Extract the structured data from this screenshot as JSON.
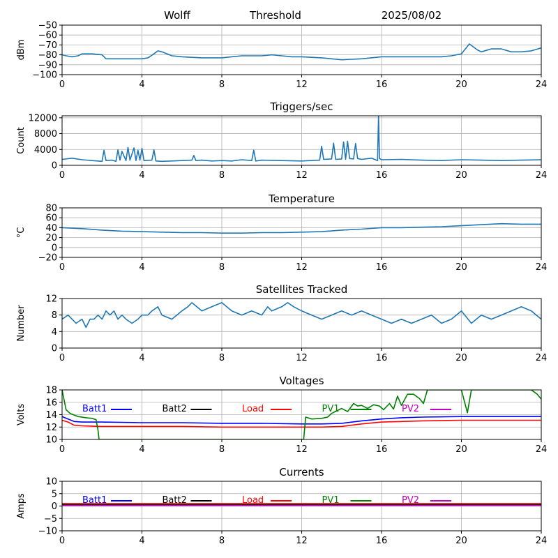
{
  "header": {
    "station": "Wolff",
    "mode": "Threshold",
    "date": "2025/08/02"
  },
  "chart_data": [
    {
      "type": "line",
      "title": "",
      "xlabel": "",
      "ylabel": "dBm",
      "xlim": [
        0,
        24
      ],
      "ylim": [
        -100,
        -50
      ],
      "xticks": [
        0,
        4,
        8,
        12,
        16,
        20,
        24
      ],
      "yticks": [
        -100,
        -90,
        -80,
        -70,
        -60,
        -50
      ],
      "grid": true,
      "series": [
        {
          "color": "#1f77b4",
          "x": [
            0,
            0.2,
            0.5,
            0.8,
            1.0,
            1.5,
            2.0,
            2.2,
            3.0,
            4.0,
            4.3,
            4.6,
            4.8,
            5.0,
            5.5,
            6.0,
            7.0,
            8.0,
            8.5,
            9.0,
            10.0,
            10.5,
            11.0,
            11.5,
            12.0,
            13.0,
            14.0,
            15.0,
            16.0,
            17.0,
            18.0,
            19.0,
            19.5,
            20.0,
            20.4,
            20.8,
            21.0,
            21.5,
            22.0,
            22.5,
            23.0,
            23.5,
            24.0
          ],
          "y": [
            -80,
            -81,
            -82,
            -81,
            -79,
            -79,
            -80,
            -84,
            -84,
            -84,
            -83,
            -79,
            -76,
            -77,
            -81,
            -82,
            -83,
            -83,
            -82,
            -81,
            -81,
            -80,
            -81,
            -82,
            -82,
            -83,
            -85,
            -84,
            -82,
            -82,
            -82,
            -82,
            -81,
            -79,
            -69,
            -75,
            -77,
            -74,
            -74,
            -77,
            -77,
            -76,
            -73
          ]
        }
      ]
    },
    {
      "type": "line",
      "title": "Triggers/sec",
      "xlabel": "",
      "ylabel": "Count",
      "xlim": [
        0,
        24
      ],
      "ylim": [
        0,
        12500
      ],
      "xticks": [
        0,
        4,
        8,
        12,
        16,
        20,
        24
      ],
      "yticks": [
        0,
        4000,
        8000,
        12000
      ],
      "grid": true,
      "series": [
        {
          "color": "#1f77b4",
          "x": [
            0,
            0.5,
            1.0,
            1.5,
            2.0,
            2.1,
            2.2,
            2.5,
            2.7,
            2.8,
            2.9,
            3.0,
            3.2,
            3.3,
            3.4,
            3.6,
            3.7,
            3.8,
            3.9,
            4.0,
            4.1,
            4.5,
            4.6,
            4.7,
            5.0,
            6.0,
            6.5,
            6.6,
            6.7,
            7.0,
            7.5,
            8.0,
            8.5,
            9.0,
            9.5,
            9.6,
            9.7,
            10.0,
            11.0,
            12.0,
            12.9,
            13.0,
            13.1,
            13.5,
            13.6,
            13.7,
            14.0,
            14.1,
            14.2,
            14.3,
            14.4,
            14.6,
            14.7,
            14.8,
            15.0,
            15.5,
            15.8,
            15.85,
            15.9,
            16.0,
            17.0,
            18.0,
            19.0,
            20.0,
            21.0,
            22.0,
            23.0,
            24.0
          ],
          "y": [
            1500,
            1800,
            1400,
            1200,
            1000,
            3800,
            1200,
            1300,
            1000,
            3900,
            1300,
            3500,
            1200,
            4500,
            1300,
            4400,
            1200,
            3800,
            1300,
            4300,
            1200,
            1300,
            3900,
            1100,
            1000,
            1200,
            1300,
            2500,
            1200,
            1300,
            1100,
            1200,
            1100,
            1400,
            1200,
            3800,
            1100,
            1300,
            1200,
            1100,
            1300,
            4800,
            1500,
            1600,
            5600,
            1500,
            1600,
            5900,
            1500,
            6100,
            1700,
            1600,
            5500,
            1700,
            1500,
            1800,
            1200,
            12500,
            1700,
            1400,
            1500,
            1300,
            1200,
            1400,
            1300,
            1200,
            1300,
            1400
          ]
        }
      ]
    },
    {
      "type": "line",
      "title": "Temperature",
      "xlabel": "",
      "ylabel": "°C",
      "xlim": [
        0,
        24
      ],
      "ylim": [
        -20,
        80
      ],
      "xticks": [
        0,
        4,
        8,
        12,
        16,
        20,
        24
      ],
      "yticks": [
        -20,
        0,
        20,
        40,
        60,
        80
      ],
      "grid": true,
      "series": [
        {
          "color": "#1f77b4",
          "x": [
            0,
            1,
            2,
            3,
            4,
            5,
            6,
            7,
            8,
            9,
            10,
            11,
            12,
            13,
            14,
            15,
            16,
            17,
            18,
            19,
            20,
            21,
            22,
            23,
            24
          ],
          "y": [
            40,
            38,
            35,
            33,
            32,
            31,
            30,
            30,
            29,
            29,
            30,
            30,
            31,
            32,
            35,
            37,
            40,
            40,
            41,
            42,
            44,
            46,
            48,
            47,
            47
          ]
        }
      ]
    },
    {
      "type": "line",
      "title": "Satellites Tracked",
      "xlabel": "",
      "ylabel": "Number",
      "xlim": [
        0,
        24
      ],
      "ylim": [
        0,
        12
      ],
      "xticks": [
        0,
        4,
        8,
        12,
        16,
        20,
        24
      ],
      "yticks": [
        0,
        4,
        8,
        12
      ],
      "grid": true,
      "series": [
        {
          "color": "#1f77b4",
          "x": [
            0,
            0.3,
            0.5,
            0.7,
            1.0,
            1.2,
            1.4,
            1.6,
            1.8,
            2.0,
            2.2,
            2.4,
            2.6,
            2.8,
            3.0,
            3.2,
            3.5,
            3.8,
            4.0,
            4.3,
            4.5,
            4.8,
            5.0,
            5.5,
            6.0,
            6.3,
            6.5,
            7.0,
            7.5,
            8.0,
            8.5,
            9.0,
            9.5,
            10.0,
            10.3,
            10.5,
            11.0,
            11.3,
            11.6,
            12.0,
            12.5,
            13.0,
            13.5,
            14.0,
            14.5,
            15.0,
            15.5,
            16.0,
            16.5,
            17.0,
            17.5,
            18.0,
            18.5,
            19.0,
            19.5,
            20.0,
            20.5,
            21.0,
            21.5,
            22.0,
            22.5,
            23.0,
            23.5,
            24.0
          ],
          "y": [
            7,
            8,
            7,
            6,
            7,
            5,
            7,
            7,
            8,
            7,
            9,
            8,
            9,
            7,
            8,
            7,
            6,
            7,
            8,
            8,
            9,
            10,
            8,
            7,
            9,
            10,
            11,
            9,
            10,
            11,
            9,
            8,
            9,
            8,
            10,
            9,
            10,
            11,
            10,
            9,
            8,
            7,
            8,
            9,
            8,
            9,
            8,
            7,
            6,
            7,
            6,
            7,
            8,
            6,
            7,
            9,
            6,
            8,
            7,
            8,
            9,
            10,
            9,
            7
          ]
        }
      ]
    },
    {
      "type": "line",
      "title": "Voltages",
      "xlabel": "",
      "ylabel": "Volts",
      "xlim": [
        0,
        24
      ],
      "ylim": [
        10,
        18
      ],
      "xticks": [
        0,
        4,
        8,
        12,
        16,
        20,
        24
      ],
      "yticks": [
        10,
        12,
        14,
        16,
        18
      ],
      "grid": true,
      "legend": "inside-top",
      "series": [
        {
          "name": "Batt1",
          "color": "#0000ff",
          "x": [
            0,
            0.3,
            0.6,
            1.0,
            2,
            4,
            6,
            8,
            10,
            12,
            13,
            14,
            15,
            16,
            17,
            18,
            20,
            24
          ],
          "y": [
            13.7,
            13.3,
            12.9,
            12.8,
            12.8,
            12.7,
            12.7,
            12.6,
            12.6,
            12.5,
            12.5,
            12.6,
            13.0,
            13.3,
            13.5,
            13.6,
            13.7,
            13.7
          ]
        },
        {
          "name": "Batt2",
          "color": "#000000",
          "x": [],
          "y": []
        },
        {
          "name": "Load",
          "color": "#ff0000",
          "x": [
            0,
            0.3,
            0.6,
            1.0,
            2,
            4,
            6,
            8,
            10,
            12,
            13,
            14,
            15,
            16,
            17,
            18,
            20,
            24
          ],
          "y": [
            13.1,
            12.8,
            12.3,
            12.2,
            12.1,
            12.1,
            12.1,
            12.0,
            12.0,
            12.0,
            12.0,
            12.1,
            12.5,
            12.8,
            12.9,
            13.0,
            13.1,
            13.1
          ]
        },
        {
          "name": "PV1",
          "color": "#008000",
          "x": [
            0,
            0.2,
            0.4,
            0.8,
            1.2,
            1.5,
            1.7,
            1.8,
            1.85,
            12.1,
            12.2,
            12.5,
            13.0,
            13.3,
            13.5,
            14.0,
            14.3,
            14.6,
            14.8,
            15.0,
            15.3,
            15.6,
            15.9,
            16.1,
            16.4,
            16.6,
            16.8,
            17.0,
            17.3,
            17.6,
            17.9,
            18.1,
            18.3,
            20.0,
            20.3,
            20.5,
            23.5,
            23.8,
            24.0
          ],
          "y": [
            18,
            14.8,
            14.2,
            13.7,
            13.5,
            13.4,
            13.2,
            11.5,
            10,
            10,
            13.6,
            13.3,
            13.4,
            13.6,
            14.2,
            15.0,
            14.5,
            15.8,
            15.4,
            15.5,
            15.0,
            15.6,
            15.4,
            14.8,
            15.8,
            14.9,
            17.0,
            15.5,
            17.3,
            17.3,
            16.6,
            15.8,
            18,
            18,
            14.3,
            18,
            18,
            17.3,
            16.5
          ]
        },
        {
          "name": "PV2",
          "color": "#bf00bf",
          "x": [],
          "y": []
        }
      ]
    },
    {
      "type": "line",
      "title": "Currents",
      "xlabel": "",
      "ylabel": "Amps",
      "xlim": [
        0,
        24
      ],
      "ylim": [
        -10,
        10
      ],
      "xticks": [
        0,
        4,
        8,
        12,
        16,
        20,
        24
      ],
      "yticks": [
        -10,
        -5,
        0,
        5,
        10
      ],
      "grid": true,
      "legend": "inside-top",
      "series": [
        {
          "name": "Batt1",
          "color": "#0000ff",
          "x": [
            0,
            24
          ],
          "y": [
            0.5,
            0.5
          ]
        },
        {
          "name": "Batt2",
          "color": "#000000",
          "x": [
            0,
            24
          ],
          "y": [
            0.8,
            0.8
          ]
        },
        {
          "name": "Load",
          "color": "#ff0000",
          "x": [
            0,
            24
          ],
          "y": [
            1.0,
            1.0
          ]
        },
        {
          "name": "PV1",
          "color": "#008000",
          "x": [
            0,
            24
          ],
          "y": [
            0.3,
            0.3
          ]
        },
        {
          "name": "PV2",
          "color": "#bf00bf",
          "x": [
            0,
            24
          ],
          "y": [
            0.2,
            0.2
          ]
        }
      ]
    }
  ]
}
